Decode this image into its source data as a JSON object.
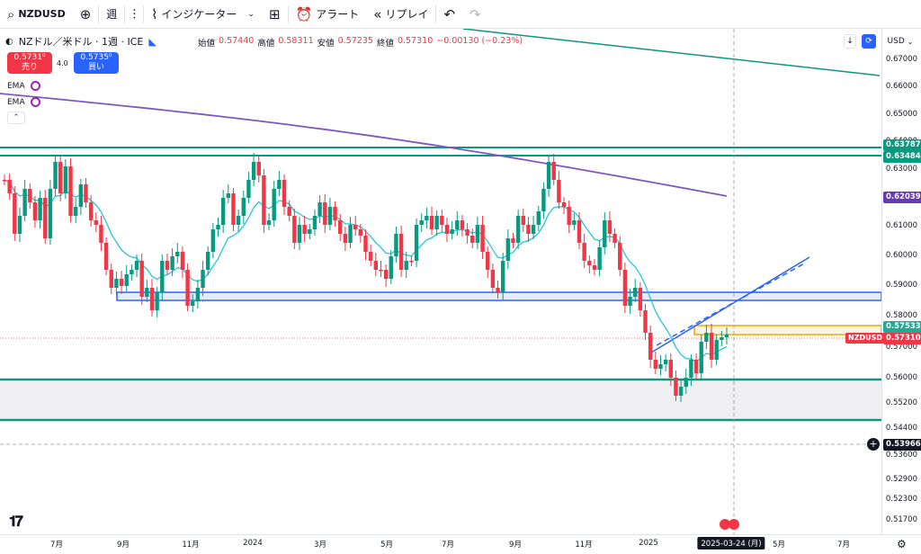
{
  "toolbar": {
    "symbol": "NZDUSD",
    "add_icon": "plus-circle-icon",
    "interval": "週",
    "chart_type_icon": "candles-icon",
    "indicators_label": "インジケーター",
    "layout_icon": "grid-icon",
    "alert_label": "アラート",
    "replay_label": "リプレイ",
    "undo_icon": "undo-icon",
    "redo_icon": "redo-icon"
  },
  "legend": {
    "title": "NZドル／米ドル · 1週 · ICE",
    "open_label": "始値",
    "open": "0.57440",
    "high_label": "高値",
    "high": "0.58311",
    "low_label": "安値",
    "low": "0.57235",
    "close_label": "終値",
    "close": "0.57310",
    "change": "−0.00130 (−0.23%)",
    "sell_price": "0.5731⁰",
    "sell_label": "売り",
    "spread": "4.0",
    "buy_price": "0.5735⁰",
    "buy_label": "買い",
    "ema1": "EMA",
    "ema2": "EMA"
  },
  "top_right": {
    "currency": "USD"
  },
  "price_axis": [
    "0.67000",
    "0.66000",
    "0.65000",
    "0.64000",
    "0.63000",
    "0.62000",
    "0.61000",
    "0.60000",
    "0.59000",
    "0.58000",
    "0.57000",
    "0.56000",
    "0.55200",
    "0.54400",
    "0.53600",
    "0.52900",
    "0.52300",
    "0.51700"
  ],
  "price_tags": [
    {
      "label": "0.63787",
      "color": "#089981"
    },
    {
      "label": "0.63484",
      "color": "#089981"
    },
    {
      "label": "0.62039",
      "color": "#673ab7"
    },
    {
      "label": "0.57533",
      "color": "#22ab94"
    },
    {
      "label": "0.57310",
      "color": "#f23645"
    },
    {
      "label": "0.53966",
      "color": "#131722"
    }
  ],
  "symbol_tag": "NZDUSD",
  "time_axis": [
    "7月",
    "9月",
    "11月",
    "2024",
    "3月",
    "5月",
    "7月",
    "9月",
    "11月",
    "2025",
    "5月",
    "7月"
  ],
  "time_cursor": "2025-03-24 (月)",
  "colors": {
    "up": "#089981",
    "down": "#f23645",
    "ema_fast": "#26c6da",
    "ema_slow": "#7e57c2",
    "support": "#089981",
    "zone_blue": "#2962ff",
    "zone_orange": "#f7a600"
  }
}
